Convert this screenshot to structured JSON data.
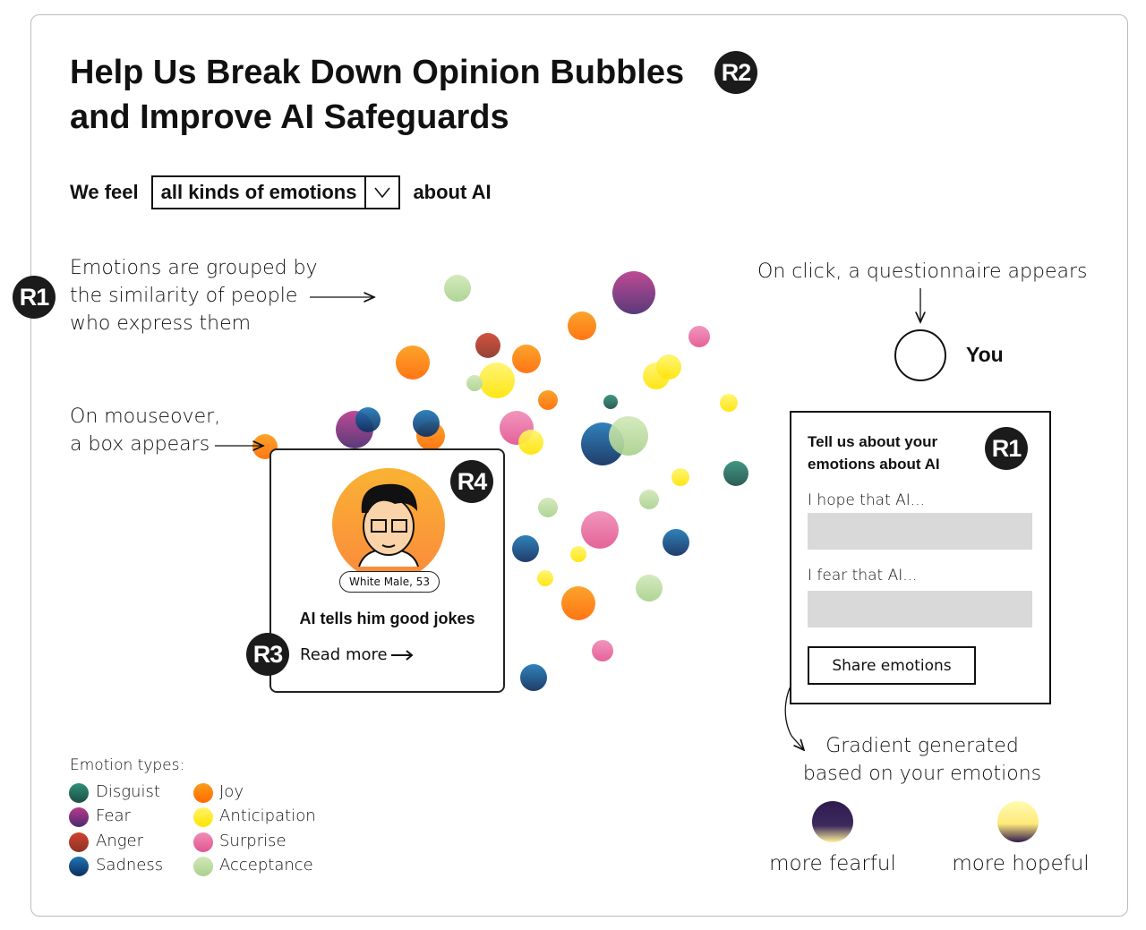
{
  "header": {
    "title": [
      "Help Us Break Down Opinion Bubbles",
      "and Improve AI Safeguards"
    ],
    "badge": "R2"
  },
  "emotion_selector": {
    "prefix": "We feel",
    "selected": "all kinds of emotions",
    "suffix": "about AI"
  },
  "annotations": {
    "grouping": {
      "badge": "R1",
      "lines": [
        "Emotions are grouped by",
        "the similarity of people",
        "who express them"
      ]
    },
    "mouseover": [
      "On mouseover,",
      "a box appears"
    ],
    "click": "On click, a questionnaire appears",
    "gradient": [
      "Gradient generated",
      "based on your emotions"
    ]
  },
  "you_node": {
    "label": "You"
  },
  "hover_box": {
    "badge_avatar": "R4",
    "person": "White Male, 53",
    "headline": "AI tells him good jokes",
    "badge_link": "R3",
    "link": "Read more"
  },
  "questionnaire": {
    "title": [
      "Tell us about your",
      "emotions about AI"
    ],
    "badge": "R1",
    "hope_label": "I hope that AI...",
    "fear_label": "I fear that AI...",
    "button": "Share emotions"
  },
  "legend": {
    "title": "Emotion types:",
    "items": [
      "Disguist",
      "Fear",
      "Anger",
      "Sadness",
      "Joy",
      "Anticipation",
      "Surprise",
      "Acceptance"
    ]
  },
  "gradient_scale": {
    "fearful": "more fearful",
    "hopeful": "more hopeful"
  }
}
